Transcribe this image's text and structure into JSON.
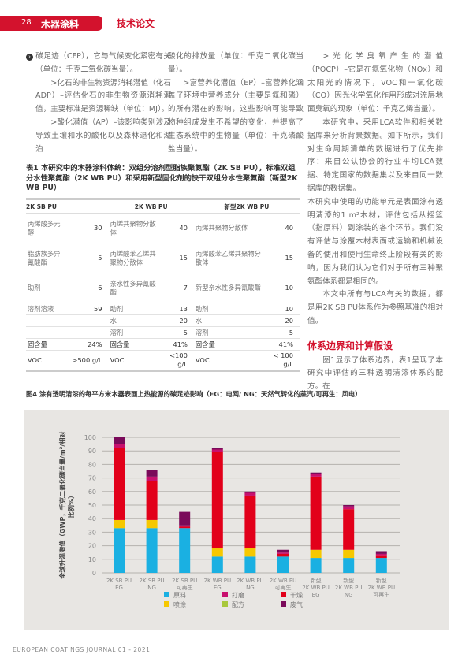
{
  "header": {
    "page": "28",
    "section": "木器涂料",
    "kind": "技术论文"
  },
  "columns": {
    "c1": [
      "碳足迹（CFP），它与气候变化紧密有关（单位：千克二氧化碳当量）。",
      ">化石的非生物资源消耗潜值（化石ADP）–评估化石的非生物资源消耗潜值，主要标准是资源稀缺（单位：MJ）。",
      ">酸化潜值（AP）–该影响类别涉及导致土壤和水的酸化以及森林退化和湖泊"
    ],
    "c2": [
      "酸化的排放量（单位：千克二氧化碳当量）。",
      ">富营养化潜值（EP）–富营养化涵盖了环境中营养成分（主要是氮和磷）的所有潜在的影响，这些影响可能导致物种组成发生不希望的变化，并提高了生态系统中的生物量（单位：千克磷酸盐当量）。"
    ],
    "c3": [
      ">光化学臭氧产生的潜值（POCP）–它是在氮氧化物（NOx）和太阳光的情况下，VOC和一氧化碳（CO）因光化学氧化作用形成对流层地面臭氧的现象（单位：千克乙烯当量）。",
      "本研究中，采用LCA软件和相关数据库来分析背景数据。如下所示，我们对生命周期清单的数据进行了优先排序：来自公认协会的行业平均LCA数据、特定国家的数据集以及来自同一数据库的数据集。",
      "本研究中使用的功能单元是表面涂有透明清漆的1 m²木材，评估包括从摇篮（指原料）到涂装的各个环节。我们没有评估与涂覆木材表面或运输和机械设备的使用和使用生命终止阶段有关的影响，因为我们认为它们对于所有三种聚氨酯体系都是相同的。",
      "本文中所有与LCA有关的数据，都是用2K SB PU体系作为参照基准的相对值。"
    ],
    "c3_heading": "体系边界和计算假设",
    "c3_after": "图1显示了体系边界，表1呈现了本研究中评估的三种透明清漆体系的配方。在"
  },
  "table": {
    "caption": "表1 本研究中的木器涂料体统：双组分溶剂型脂族聚氨酯（2K SB PU），标准双组分水性聚氨酯（2K WB PU）和采用新型固化剂的快干双组分水性聚氨酯（新型2K WB PU）",
    "headers": [
      "2K SB PU",
      "2K WB PU",
      "新型2K WB PU"
    ],
    "rows": [
      [
        "丙烯酸多元醇",
        "30",
        "丙烯共聚物分散体",
        "40",
        "丙烯共聚物分散体",
        "40"
      ],
      [
        "脂肪族多异氰酸酯",
        "5",
        "丙烯酸苯乙烯共聚物分散体",
        "15",
        "丙烯酸苯乙烯共聚物分散体",
        "15"
      ],
      [
        "助剂",
        "6",
        "亲水性多异氰酸酯",
        "7",
        "新型亲水性多异氰酸酯",
        "10"
      ],
      [
        "溶剂溶液",
        "59",
        "助剂",
        "13",
        "助剂",
        "10"
      ],
      [
        "",
        "",
        "水",
        "20",
        "水",
        "20"
      ],
      [
        "",
        "",
        "溶剂",
        "5",
        "溶剂",
        "5"
      ],
      [
        "固含量",
        "24%",
        "固含量",
        "41%",
        "固含量",
        "41%"
      ],
      [
        "VOC",
        ">500 g/L",
        "VOC",
        "<100 g/L",
        "VOC",
        "< 100 g/L"
      ]
    ]
  },
  "figure_caption": "图4 涂有透明清漆的每平方米木器表面上热能源的碳足迹影响（EG：电网/ NG：天然气转化的蒸汽/可再生：风电）",
  "chart_data": {
    "type": "bar",
    "stacked": true,
    "ylabel": "全球升温潜值（GWP，千克二氧化碳当量/m²/相对比例%）",
    "ylim": [
      0,
      100
    ],
    "yticks": [
      "0",
      "10",
      "20",
      "30",
      "40",
      "50",
      "60",
      "70",
      "80",
      "90",
      "100"
    ],
    "grid": true,
    "categories": [
      [
        "2K SB PU",
        "EG"
      ],
      [
        "2K SB PU",
        "NG"
      ],
      [
        "2K SB PU",
        "可再生"
      ],
      [
        "2K WB PU",
        "EG"
      ],
      [
        "2K WB PU",
        "NG"
      ],
      [
        "2K WB PU",
        "可再生"
      ],
      [
        "新型",
        "2K WB PU",
        "EG"
      ],
      [
        "新型",
        "2K WB PU",
        "NG"
      ],
      [
        "新型",
        "2K WB PU",
        "可再生"
      ]
    ],
    "series": [
      {
        "name": "原料",
        "color": "#1ab0e2",
        "values": [
          33,
          33,
          33,
          12,
          12,
          12,
          11,
          11,
          11
        ]
      },
      {
        "name": "配方",
        "color": "#a8c83c",
        "values": [
          0,
          0,
          0,
          0,
          0,
          0,
          0,
          0,
          0
        ]
      },
      {
        "name": "喷涂",
        "color": "#f6c800",
        "values": [
          6,
          6,
          0,
          6,
          6,
          0,
          6,
          6,
          0
        ]
      },
      {
        "name": "干燥",
        "color": "#e2001a",
        "values": [
          53,
          29,
          1,
          71,
          39,
          2,
          54,
          30,
          2
        ]
      },
      {
        "name": "打磨",
        "color": "#c8106e",
        "values": [
          3,
          3,
          1,
          2,
          2,
          1,
          2,
          2,
          1
        ]
      },
      {
        "name": "废气",
        "color": "#7a0a5a",
        "values": [
          5,
          5,
          10,
          1,
          1,
          2,
          1,
          1,
          2
        ]
      }
    ],
    "legend_order": [
      0,
      2,
      4,
      1,
      3,
      5
    ],
    "legend_placement": "bottom"
  },
  "footer": "EUROPEAN COATINGS JOURNAL 01 - 2021"
}
